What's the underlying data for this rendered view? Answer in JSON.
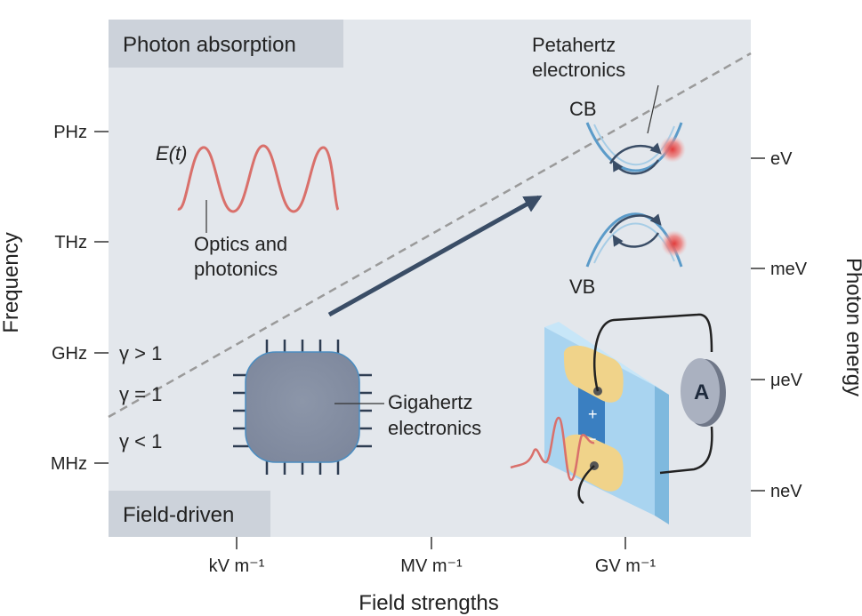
{
  "x_axis": {
    "title": "Field strengths",
    "ticks": [
      "kV m⁻¹",
      "MV m⁻¹",
      "GV m⁻¹"
    ]
  },
  "y_axis_left": {
    "title": "Frequency",
    "ticks": [
      "PHz",
      "THz",
      "GHz",
      "MHz"
    ]
  },
  "y_axis_right": {
    "title": "Photon energy",
    "ticks": [
      "eV",
      "meV",
      "μeV",
      "neV"
    ]
  },
  "regions": {
    "top": "Photon absorption",
    "bottom": "Field-driven"
  },
  "keldysh": {
    "above": "γ > 1",
    "equal": "γ = 1",
    "below": "γ < 1"
  },
  "labels": {
    "field": "E(t)",
    "optics_line1": "Optics and",
    "optics_line2": "photonics",
    "petahertz_line1": "Petahertz",
    "petahertz_line2": "electronics",
    "cb": "CB",
    "vb": "VB",
    "gigahertz_line1": "Gigahertz",
    "gigahertz_line2": "electronics",
    "ammeter": "A",
    "plus": "+",
    "minus": "−"
  },
  "colors": {
    "panel": "#e2e6eb",
    "label_box": "#cdd3db",
    "wave": "#d9706b",
    "arrow": "#3a4d66",
    "band": "#5b9bc9",
    "chip": "#8893a8",
    "slab": "#a9d4f0",
    "electrode": "#f0d38a"
  }
}
